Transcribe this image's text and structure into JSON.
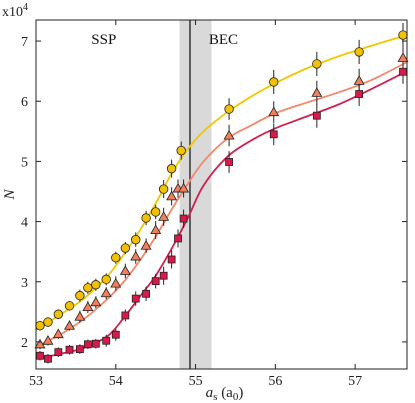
{
  "chart_data": {
    "type": "scatter",
    "title": "",
    "xlabel_main": "a",
    "xlabel_sub": "s",
    "xlabel_unit_open": " (a",
    "xlabel_unit_sub": "0",
    "xlabel_unit_close": ")",
    "ylabel": "N",
    "y_multiplier": "x10",
    "y_multiplier_exp": "4",
    "xlim": [
      53.0,
      57.65
    ],
    "ylim": [
      1.55,
      7.35
    ],
    "xticks": [
      53,
      54,
      55,
      56,
      57
    ],
    "yticks": [
      2,
      3,
      4,
      5,
      6,
      7
    ],
    "grid": false,
    "legend": "none",
    "annotations": [
      {
        "id": "ssp",
        "text": "SSP",
        "x": 53.85,
        "y": 6.95
      },
      {
        "id": "bec",
        "text": "BEC",
        "x": 55.35,
        "y": 6.95
      }
    ],
    "shaded_band": {
      "x0": 54.8,
      "x1": 55.2,
      "color": "#d9d9d9"
    },
    "vertical_line": {
      "x": 54.93,
      "color": "#333333"
    },
    "series": [
      {
        "marker": "circle",
        "fill": "#f2c200",
        "line_color": "#f0c800",
        "x": [
          53.05,
          53.15,
          53.28,
          53.42,
          53.55,
          53.65,
          53.75,
          53.88,
          54.0,
          54.12,
          54.25,
          54.38,
          54.5,
          54.6,
          54.7,
          54.82,
          55.42,
          55.98,
          56.52,
          57.05,
          57.6
        ],
        "y": [
          2.27,
          2.33,
          2.46,
          2.6,
          2.77,
          2.9,
          2.95,
          3.04,
          3.4,
          3.56,
          3.7,
          4.06,
          4.16,
          4.54,
          4.88,
          5.18,
          5.87,
          6.32,
          6.62,
          6.82,
          7.1
        ],
        "err": [
          0.08,
          0.08,
          0.08,
          0.08,
          0.1,
          0.1,
          0.1,
          0.1,
          0.1,
          0.1,
          0.12,
          0.12,
          0.12,
          0.15,
          0.15,
          0.15,
          0.18,
          0.2,
          0.2,
          0.2,
          0.2
        ],
        "fit_x": [
          53.0,
          53.3,
          53.6,
          53.9,
          54.1,
          54.3,
          54.5,
          54.7,
          54.9,
          55.1,
          55.4,
          55.7,
          56.0,
          56.4,
          56.8,
          57.2,
          57.65
        ],
        "fit_y": [
          2.2,
          2.45,
          2.72,
          3.1,
          3.45,
          3.85,
          4.3,
          4.8,
          5.2,
          5.5,
          5.82,
          6.08,
          6.3,
          6.55,
          6.75,
          6.92,
          7.1
        ]
      },
      {
        "marker": "triangle",
        "fill": "#f07f5a",
        "line_color": "#f4876a",
        "x": [
          53.05,
          53.15,
          53.28,
          53.42,
          53.55,
          53.65,
          53.75,
          53.88,
          54.0,
          54.12,
          54.25,
          54.38,
          54.5,
          54.6,
          54.7,
          54.78,
          54.85,
          55.42,
          55.98,
          56.52,
          57.05,
          57.6
        ],
        "y": [
          1.96,
          2.02,
          2.13,
          2.27,
          2.42,
          2.58,
          2.66,
          2.81,
          2.97,
          3.18,
          3.42,
          3.6,
          3.86,
          4.08,
          4.42,
          4.55,
          4.55,
          5.43,
          5.82,
          6.14,
          6.34,
          6.72
        ],
        "err": [
          0.08,
          0.08,
          0.08,
          0.08,
          0.1,
          0.1,
          0.1,
          0.1,
          0.12,
          0.12,
          0.12,
          0.12,
          0.15,
          0.15,
          0.15,
          0.15,
          0.15,
          0.18,
          0.18,
          0.2,
          0.2,
          0.2
        ],
        "fit_x": [
          53.0,
          53.3,
          53.6,
          53.9,
          54.1,
          54.3,
          54.5,
          54.7,
          54.9,
          55.1,
          55.4,
          55.7,
          56.0,
          56.4,
          56.8,
          57.2,
          57.65
        ],
        "fit_y": [
          1.92,
          2.12,
          2.38,
          2.72,
          3.0,
          3.35,
          3.75,
          4.2,
          4.62,
          5.0,
          5.38,
          5.6,
          5.8,
          5.98,
          6.15,
          6.35,
          6.65
        ]
      },
      {
        "marker": "square",
        "fill": "#d81a4a",
        "line_color": "#d02050",
        "x": [
          53.05,
          53.15,
          53.28,
          53.42,
          53.55,
          53.65,
          53.75,
          53.88,
          54.0,
          54.12,
          54.25,
          54.38,
          54.5,
          54.6,
          54.7,
          54.78,
          54.85,
          55.42,
          55.98,
          56.52,
          57.05,
          57.6
        ],
        "y": [
          1.77,
          1.72,
          1.83,
          1.87,
          1.88,
          1.96,
          1.97,
          2.02,
          2.12,
          2.44,
          2.72,
          2.8,
          3.01,
          3.1,
          3.37,
          3.72,
          4.05,
          4.99,
          5.45,
          5.76,
          6.12,
          6.49
        ],
        "err": [
          0.08,
          0.08,
          0.08,
          0.08,
          0.08,
          0.08,
          0.08,
          0.1,
          0.1,
          0.1,
          0.12,
          0.12,
          0.12,
          0.15,
          0.15,
          0.15,
          0.15,
          0.18,
          0.18,
          0.2,
          0.2,
          0.2
        ],
        "fit_x": [
          53.0,
          53.3,
          53.6,
          53.9,
          54.1,
          54.3,
          54.5,
          54.7,
          54.9,
          55.1,
          55.4,
          55.7,
          56.0,
          56.4,
          56.8,
          57.2,
          57.65
        ],
        "fit_y": [
          1.72,
          1.8,
          1.9,
          2.1,
          2.4,
          2.75,
          3.1,
          3.55,
          4.05,
          4.6,
          5.08,
          5.35,
          5.55,
          5.75,
          5.95,
          6.2,
          6.5
        ]
      }
    ]
  }
}
